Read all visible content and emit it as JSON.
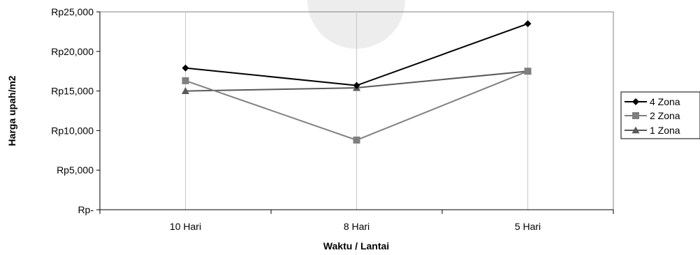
{
  "chart_data": {
    "type": "line",
    "categories": [
      "10 Hari",
      "8 Hari",
      "5 Hari"
    ],
    "series": [
      {
        "name": "4 Zona",
        "values": [
          17900,
          15700,
          23500
        ],
        "color": "#000000",
        "marker": "diamond"
      },
      {
        "name": "2 Zona",
        "values": [
          16300,
          8800,
          17500
        ],
        "color": "#7f7f7f",
        "marker": "square"
      },
      {
        "name": "1 Zona",
        "values": [
          15000,
          15400,
          17500
        ],
        "color": "#595959",
        "marker": "triangle"
      }
    ],
    "yticks": [
      0,
      5000,
      10000,
      15000,
      20000,
      25000
    ],
    "ytick_labels": [
      "Rp-",
      "Rp5,000",
      "Rp10,000",
      "Rp15,000",
      "Rp20,000",
      "Rp25,000"
    ],
    "ylim": [
      0,
      25000
    ],
    "xlabel": "Waktu / Lantai",
    "ylabel": "Harga upah/m2",
    "grid": "vertical",
    "legend_position": "right"
  }
}
